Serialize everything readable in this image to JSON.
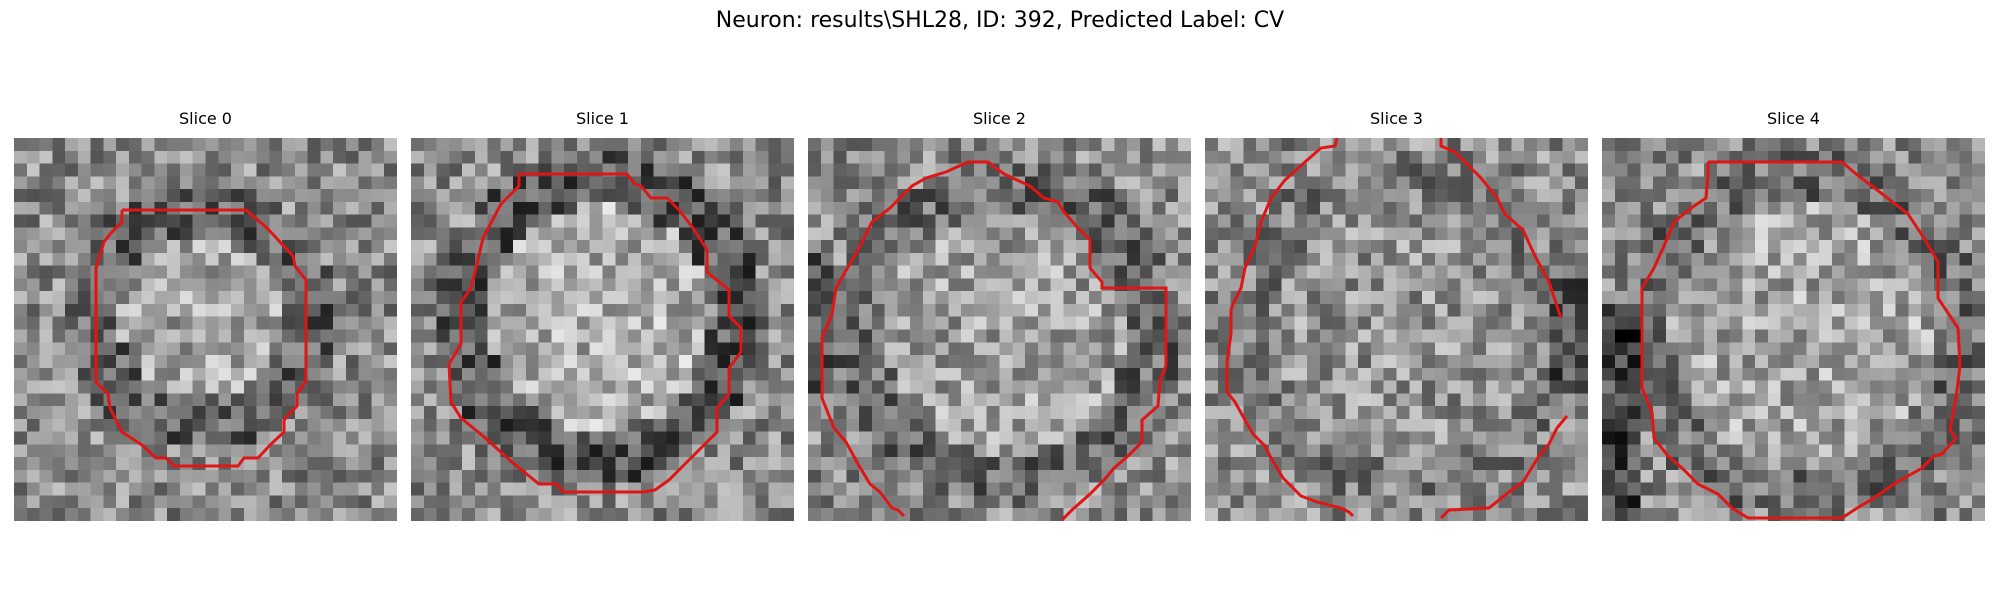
{
  "figure": {
    "title": "Neuron: results\\SHL28, ID: 392, Predicted Label: CV",
    "contour_color": "#e01515"
  },
  "panels": [
    {
      "title": "Slice 0",
      "icon": "grayscale-slice-image"
    },
    {
      "title": "Slice 1",
      "icon": "grayscale-slice-image"
    },
    {
      "title": "Slice 2",
      "icon": "grayscale-slice-image"
    },
    {
      "title": "Slice 3",
      "icon": "grayscale-slice-image"
    },
    {
      "title": "Slice 4",
      "icon": "grayscale-slice-image"
    }
  ]
}
